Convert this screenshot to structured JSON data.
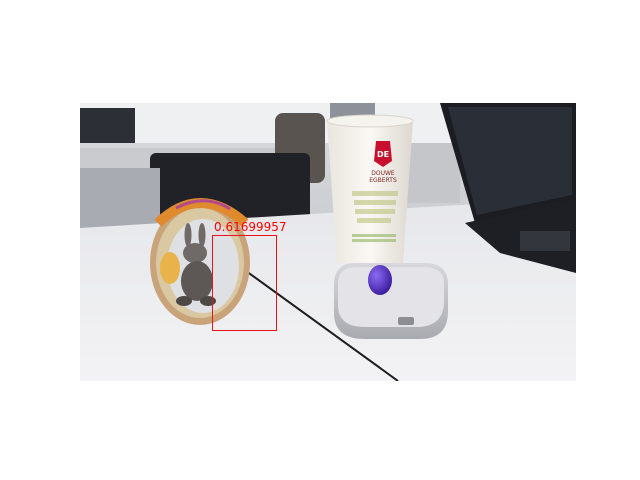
{
  "detection": {
    "score_text": "0.61699957",
    "box_color": "#e8141a"
  },
  "cup": {
    "brand_line1": "DOUWE",
    "brand_line2": "EGBERTS",
    "logo_text": "DE"
  },
  "icons": {
    "bunny": "bunny-figurine",
    "cup": "coffee-cup",
    "tin": "mint-tin",
    "egg": "chocolate-egg",
    "laptop": "laptop"
  }
}
